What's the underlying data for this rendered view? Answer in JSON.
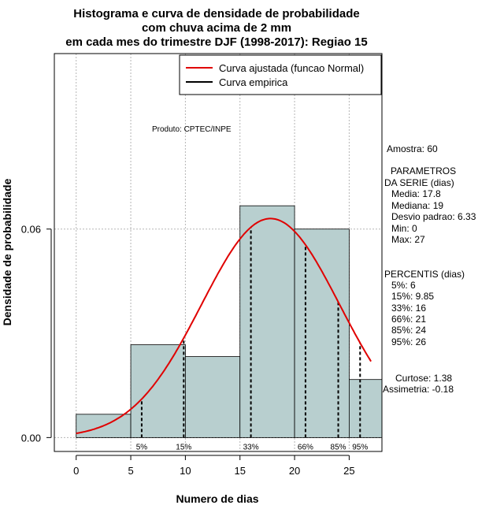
{
  "chart_data": {
    "type": "histogram",
    "title_lines": [
      "Histograma e curva de densidade de probabilidade",
      "com chuva acima de 2 mm",
      "em cada mes do trimestre DJF (1998-2017): Regiao 15"
    ],
    "xlabel": "Numero de dias",
    "ylabel": "Densidade de probabilidade",
    "xlim": [
      -2,
      28
    ],
    "ylim": [
      -0.004,
      0.1105
    ],
    "x_ticks": [
      0,
      5,
      10,
      15,
      20,
      25
    ],
    "y_ticks": [
      0.0,
      0.06
    ],
    "y_tick_labels": [
      "0.00",
      "0.06"
    ],
    "grid_x": [
      0,
      5,
      10,
      15,
      20,
      25
    ],
    "grid_y": [
      0.0,
      0.06
    ],
    "bins": [
      {
        "start": 0,
        "end": 5,
        "density": 0.0067
      },
      {
        "start": 5,
        "end": 10,
        "density": 0.0267
      },
      {
        "start": 10,
        "end": 15,
        "density": 0.0233
      },
      {
        "start": 15,
        "end": 20,
        "density": 0.0667
      },
      {
        "start": 20,
        "end": 25,
        "density": 0.06
      },
      {
        "start": 25,
        "end": 30,
        "density": 0.0167
      }
    ],
    "normal_fit": {
      "mean": 17.8,
      "sd": 6.33,
      "x_range": [
        0,
        27
      ],
      "color": "#e00000"
    },
    "bar_color": "#b8cfcf",
    "percentiles": [
      {
        "label": "5%",
        "value": 6
      },
      {
        "label": "15%",
        "value": 9.85
      },
      {
        "label": "33%",
        "value": 16
      },
      {
        "label": "66%",
        "value": 21
      },
      {
        "label": "85%",
        "value": 24
      },
      {
        "label": "95%",
        "value": 26
      }
    ],
    "legend": [
      {
        "label": "Curva ajustada (funcao Normal)",
        "color": "#e00000"
      },
      {
        "label": "Curva empirica",
        "color": "#000000"
      }
    ],
    "product_label": "Produto: CPTEC/INPE"
  },
  "side_panel": {
    "amostra": "Amostra: 60",
    "params_title_1": "PARAMETROS",
    "params_title_2": "DA SERIE (dias)",
    "params": [
      "Media: 17.8",
      "Mediana: 19",
      "Desvio padrao: 6.33",
      "Min: 0",
      "Max: 27"
    ],
    "percentis_title": "PERCENTIS (dias)",
    "percentis": [
      "5%: 6",
      "15%: 9.85",
      "33%: 16",
      "66%: 21",
      "85%: 24",
      "95%: 26"
    ],
    "curtose": "Curtose: 1.38",
    "assimetria": "Assimetria: -0.18"
  }
}
